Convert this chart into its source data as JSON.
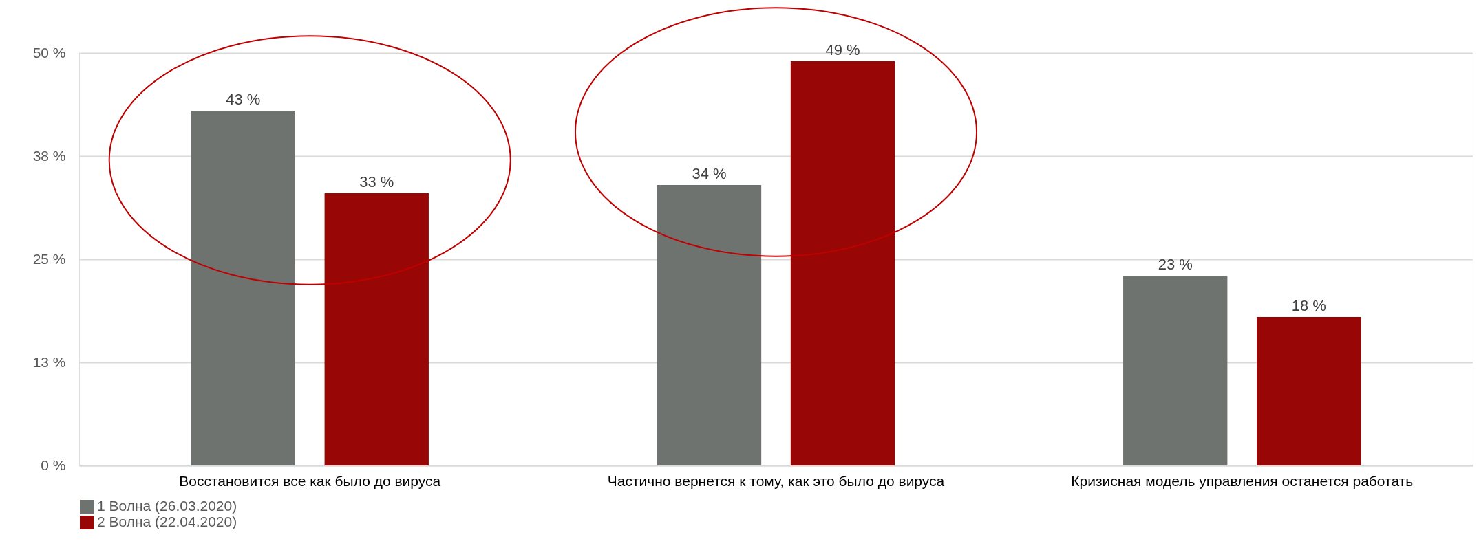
{
  "chart_data": {
    "type": "bar",
    "categories": [
      "Восстановится все как было до вируса",
      "Частично вернется к тому, как это было до вируса",
      "Кризисная модель управления останется работать"
    ],
    "series": [
      {
        "name": "1 Волна (26.03.2020)",
        "color": "#6e7370",
        "values": [
          43,
          34,
          23
        ],
        "value_labels": [
          "43 %",
          "34 %",
          "23 %"
        ]
      },
      {
        "name": "2 Волна (22.04.2020)",
        "color": "#990606",
        "values": [
          33,
          49,
          18
        ],
        "value_labels": [
          "33 %",
          "49 %",
          "18 %"
        ]
      }
    ],
    "ylim": [
      0,
      50
    ],
    "yticks": [
      {
        "value": 0,
        "label": "0 %"
      },
      {
        "value": 12.5,
        "label": "13 %"
      },
      {
        "value": 25,
        "label": "25 %"
      },
      {
        "value": 37.5,
        "label": "38 %"
      },
      {
        "value": 50,
        "label": "50 %"
      }
    ],
    "grid": "y",
    "legend": "bottom"
  }
}
